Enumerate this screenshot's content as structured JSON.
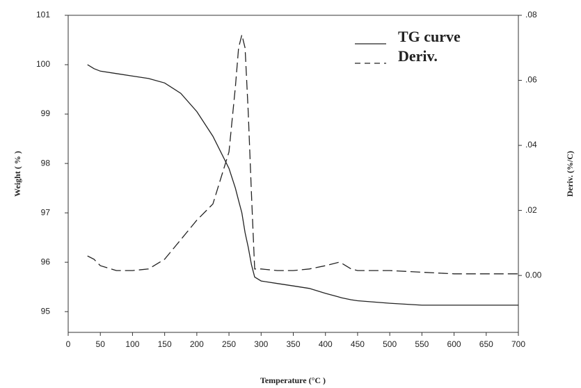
{
  "chart_data": {
    "type": "line",
    "xlabel": "Temperature (°C )",
    "ylabel": "Weight ( % )",
    "y2label": "Deriv. (%/C)",
    "x": [
      30,
      40,
      50,
      75,
      100,
      125,
      150,
      175,
      200,
      225,
      250,
      260,
      265,
      270,
      275,
      280,
      285,
      290,
      300,
      325,
      350,
      375,
      400,
      420,
      425,
      440,
      450,
      500,
      550,
      600,
      650,
      700
    ],
    "series": [
      {
        "name": "TG curve",
        "color": "#222222",
        "dash": "none",
        "values": [
          100.0,
          99.92,
          99.87,
          99.82,
          99.77,
          99.72,
          99.63,
          99.42,
          99.05,
          98.55,
          97.9,
          97.5,
          97.25,
          97.0,
          96.6,
          96.3,
          95.95,
          95.7,
          95.62,
          95.57,
          95.52,
          95.47,
          95.37,
          95.3,
          95.28,
          95.24,
          95.22,
          95.17,
          95.13,
          95.13,
          95.13,
          95.13
        ]
      },
      {
        "name": "Deriv.",
        "color": "#222222",
        "dash": "14 6",
        "axis": "y2",
        "values": [
          0.006,
          0.005,
          0.003,
          0.0015,
          0.0015,
          0.002,
          0.005,
          0.011,
          0.017,
          0.022,
          0.038,
          0.058,
          0.07,
          0.074,
          0.07,
          0.05,
          0.025,
          0.002,
          0.002,
          0.0015,
          0.0015,
          0.002,
          0.003,
          0.004,
          0.0038,
          0.002,
          0.0015,
          0.0015,
          0.001,
          0.0005,
          0.0005,
          0.0005
        ]
      }
    ],
    "xlim": [
      0,
      700
    ],
    "xticks": [
      0,
      50,
      100,
      150,
      200,
      250,
      300,
      350,
      400,
      450,
      500,
      550,
      600,
      650,
      700
    ],
    "ylim": [
      94.58,
      101
    ],
    "yticks": [
      95,
      96,
      97,
      98,
      99,
      100,
      101
    ],
    "y2lim": [
      -0.0175,
      0.08
    ],
    "y2ticks": [
      {
        "value": 0,
        "label": "0.00"
      },
      {
        "value": 0.02,
        "label": ".02"
      },
      {
        "value": 0.04,
        "label": ".04"
      },
      {
        "value": 0.06,
        "label": ".06"
      },
      {
        "value": 0.08,
        "label": ".08"
      }
    ],
    "legend": "upper right"
  }
}
